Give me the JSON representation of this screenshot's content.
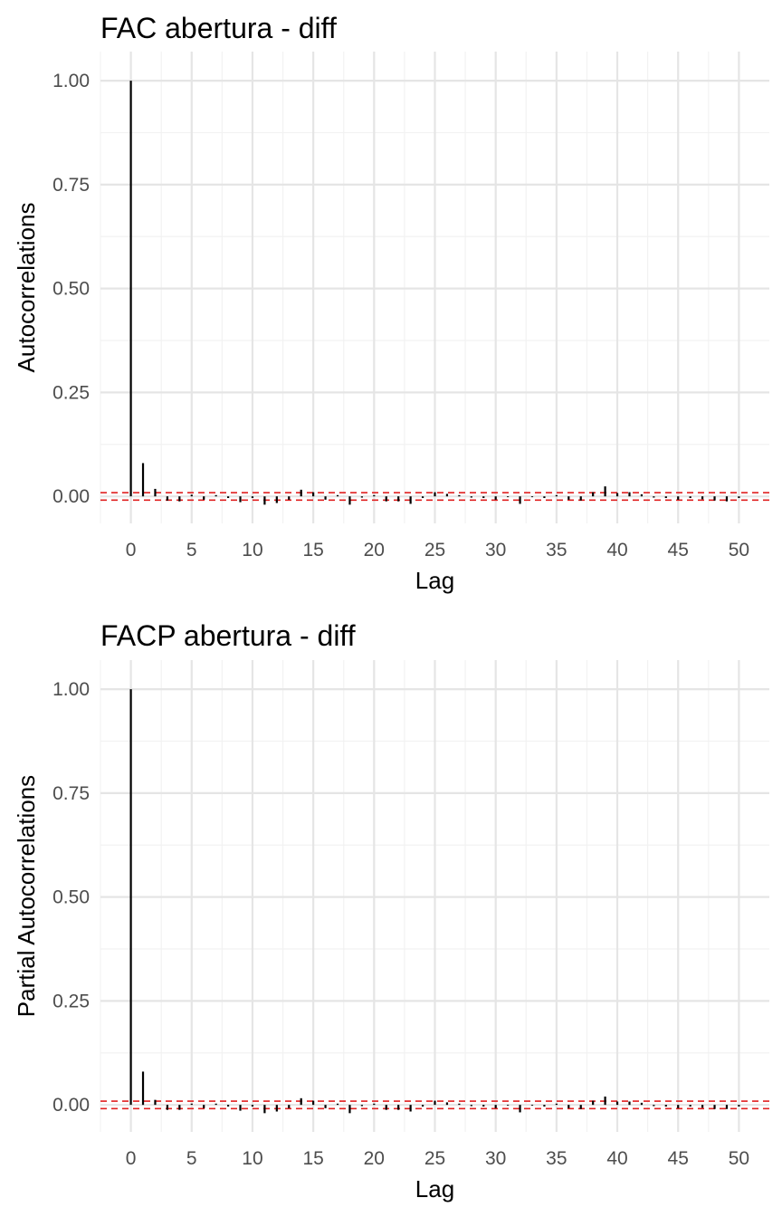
{
  "chart_data": [
    {
      "type": "bar",
      "title": "FAC abertura - diff",
      "xlabel": "Lag",
      "ylabel": "Autocorrelations",
      "xlim": [
        -2.5,
        52.5
      ],
      "ylim": [
        -0.065,
        1.07
      ],
      "x_ticks": [
        "0",
        "5",
        "10",
        "15",
        "20",
        "25",
        "30",
        "35",
        "40",
        "45",
        "50"
      ],
      "y_ticks": [
        "0.00",
        "0.25",
        "0.50",
        "0.75",
        "1.00"
      ],
      "grid": true,
      "confidence_band": [
        -0.009,
        0.009
      ],
      "lags": [
        0,
        1,
        2,
        3,
        4,
        5,
        6,
        7,
        8,
        9,
        10,
        11,
        12,
        13,
        14,
        15,
        16,
        17,
        18,
        19,
        20,
        21,
        22,
        23,
        24,
        25,
        26,
        27,
        28,
        29,
        30,
        31,
        32,
        33,
        34,
        35,
        36,
        37,
        38,
        39,
        40,
        41,
        42,
        43,
        44,
        45,
        46,
        47,
        48,
        49,
        50
      ],
      "values": [
        1.0,
        0.08,
        0.018,
        -0.01,
        -0.012,
        0.004,
        -0.008,
        0.003,
        -0.004,
        -0.014,
        -0.004,
        -0.02,
        -0.016,
        -0.008,
        0.016,
        0.01,
        -0.008,
        0.003,
        -0.02,
        -0.003,
        0.003,
        -0.012,
        -0.012,
        -0.018,
        -0.004,
        0.01,
        0.006,
        0.003,
        -0.003,
        -0.004,
        -0.008,
        -0.002,
        -0.018,
        -0.002,
        -0.004,
        0.003,
        -0.008,
        -0.01,
        0.01,
        0.024,
        0.008,
        0.01,
        0.005,
        -0.003,
        -0.004,
        -0.008,
        -0.004,
        -0.007,
        -0.01,
        -0.012,
        -0.004
      ]
    },
    {
      "type": "bar",
      "title": "FACP abertura - diff",
      "xlabel": "Lag",
      "ylabel": "Partial Autocorrelations",
      "xlim": [
        -2.5,
        52.5
      ],
      "ylim": [
        -0.065,
        1.07
      ],
      "x_ticks": [
        "0",
        "5",
        "10",
        "15",
        "20",
        "25",
        "30",
        "35",
        "40",
        "45",
        "50"
      ],
      "y_ticks": [
        "0.00",
        "0.25",
        "0.50",
        "0.75",
        "1.00"
      ],
      "grid": true,
      "confidence_band": [
        -0.009,
        0.009
      ],
      "lags": [
        0,
        1,
        2,
        3,
        4,
        5,
        6,
        7,
        8,
        9,
        10,
        11,
        12,
        13,
        14,
        15,
        16,
        17,
        18,
        19,
        20,
        21,
        22,
        23,
        24,
        25,
        26,
        27,
        28,
        29,
        30,
        31,
        32,
        33,
        34,
        35,
        36,
        37,
        38,
        39,
        40,
        41,
        42,
        43,
        44,
        45,
        46,
        47,
        48,
        49,
        50
      ],
      "values": [
        1.0,
        0.08,
        0.012,
        -0.012,
        -0.012,
        0.003,
        -0.008,
        0.003,
        -0.004,
        -0.014,
        -0.004,
        -0.02,
        -0.016,
        -0.008,
        0.016,
        0.01,
        -0.008,
        0.003,
        -0.02,
        -0.003,
        0.003,
        -0.012,
        -0.012,
        -0.016,
        -0.004,
        0.01,
        0.006,
        0.003,
        -0.003,
        -0.004,
        -0.008,
        -0.002,
        -0.018,
        -0.002,
        -0.004,
        0.003,
        -0.008,
        -0.01,
        0.01,
        0.02,
        0.008,
        0.008,
        0.005,
        -0.003,
        -0.004,
        -0.008,
        -0.004,
        -0.007,
        -0.01,
        -0.01,
        -0.004
      ]
    }
  ],
  "colors": {
    "bar": "#000000",
    "confidence_band": "#e02020",
    "grid_major": "#e5e5e5",
    "grid_minor": "#f2f2f2",
    "tick_text": "#4d4d4d"
  }
}
